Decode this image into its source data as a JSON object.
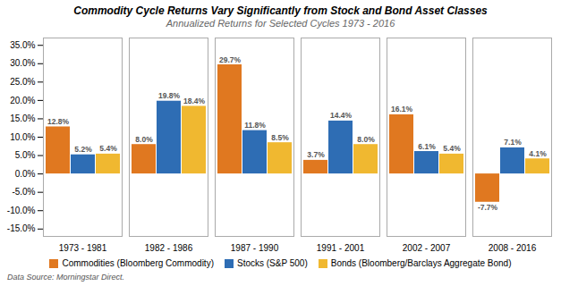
{
  "chart_data": {
    "type": "bar",
    "title": "Commodity Cycle Returns Vary Significantly from Stock and Bond Asset Classes",
    "subtitle": "Annualized Returns for Selected Cycles 1973 - 2016",
    "caption": "Data Source: Morningstar Direct.",
    "categories": [
      "1973 - 1981",
      "1982 - 1986",
      "1987 - 1990",
      "1991 - 2001",
      "2002 - 2007",
      "2008 - 2016"
    ],
    "series": [
      {
        "name": "Commodities (Bloomberg Commodity)",
        "color": "#E07820",
        "values": [
          12.8,
          8.0,
          29.7,
          3.7,
          16.1,
          -7.7
        ],
        "value_labels": [
          "12.8%",
          "8.0%",
          "29.7%",
          "3.7%",
          "16.1%",
          "-7.7%"
        ]
      },
      {
        "name": "Stocks (S&P 500)",
        "color": "#2E6DB4",
        "values": [
          5.2,
          19.8,
          11.8,
          14.4,
          6.1,
          7.1
        ],
        "value_labels": [
          "5.2%",
          "19.8%",
          "11.8%",
          "14.4%",
          "6.1%",
          "7.1%"
        ]
      },
      {
        "name": "Bonds (Bloomberg/Barclays Aggregate Bond)",
        "color": "#F0B830",
        "values": [
          5.4,
          18.4,
          8.5,
          8.0,
          5.4,
          4.1
        ],
        "value_labels": [
          "5.4%",
          "18.4%",
          "8.5%",
          "8.0%",
          "5.4%",
          "4.1%"
        ]
      }
    ],
    "ylim": [
      -17,
      37
    ],
    "yticks": [
      {
        "value": -15,
        "label": "-15.0%"
      },
      {
        "value": -10,
        "label": "-10.0%"
      },
      {
        "value": -5,
        "label": "-5.0%"
      },
      {
        "value": 0,
        "label": "0.0%"
      },
      {
        "value": 5,
        "label": "5.0%"
      },
      {
        "value": 10,
        "label": "10.0%"
      },
      {
        "value": 15,
        "label": "15.0%"
      },
      {
        "value": 20,
        "label": "20.0%"
      },
      {
        "value": 25,
        "label": "25.0%"
      },
      {
        "value": 30,
        "label": "30.0%"
      },
      {
        "value": 35,
        "label": "35.0%"
      }
    ],
    "grid": false,
    "legend": "bottom",
    "data_labels": true
  }
}
